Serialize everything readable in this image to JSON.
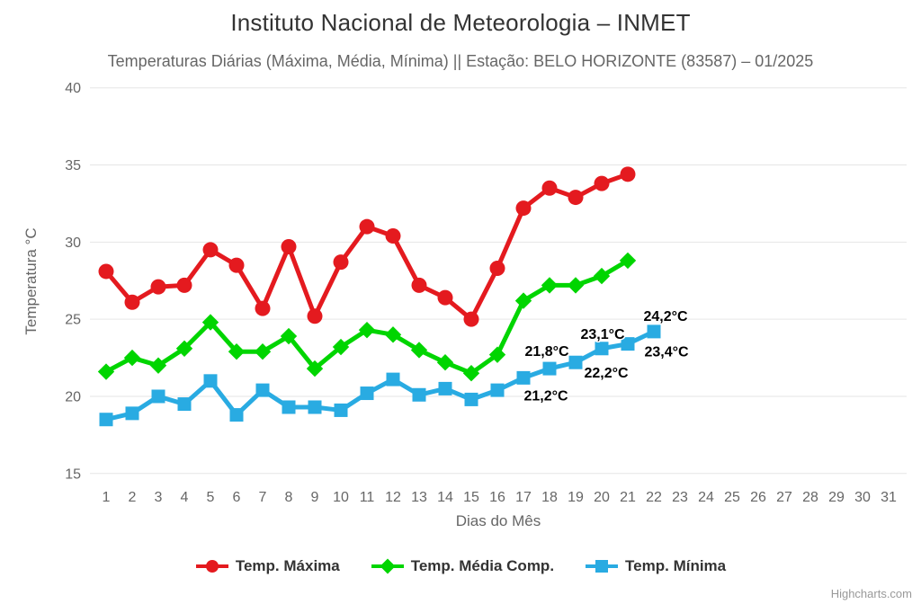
{
  "header": {
    "title": "Instituto Nacional de Meteorologia – INMET",
    "subtitle": "Temperaturas Diárias (Máxima, Média, Mínima) || Estação: BELO HORIZONTE (83587) – 01/2025"
  },
  "credits": "Highcharts.com",
  "chart_data": {
    "type": "line",
    "title": "Instituto Nacional de Meteorologia – INMET",
    "subtitle": "Temperaturas Diárias (Máxima, Média, Mínima) || Estação: BELO HORIZONTE (83587) – 01/2025",
    "xlabel": "Dias do Mês",
    "ylabel": "Temperatura °C",
    "ylim": [
      15,
      40
    ],
    "y_ticks": [
      40,
      35,
      30,
      25,
      20,
      15
    ],
    "x_ticks": [
      "1",
      "2",
      "3",
      "4",
      "5",
      "6",
      "7",
      "8",
      "9",
      "10",
      "11",
      "12",
      "13",
      "14",
      "15",
      "16",
      "17",
      "18",
      "19",
      "20",
      "21",
      "22",
      "23",
      "24",
      "25",
      "26",
      "27",
      "28",
      "29",
      "30",
      "31"
    ],
    "grid": true,
    "grid_color": "#e6e6e6",
    "legend_position": "bottom",
    "series": [
      {
        "name": "Temp. Máxima",
        "color": "#e41a1f",
        "marker": "circle",
        "x": [
          1,
          2,
          3,
          4,
          5,
          6,
          7,
          8,
          9,
          10,
          11,
          12,
          13,
          14,
          15,
          16,
          17,
          18,
          19,
          20,
          21
        ],
        "values": [
          28.1,
          26.1,
          27.1,
          27.2,
          29.5,
          28.5,
          25.7,
          29.7,
          25.2,
          28.7,
          31.0,
          30.4,
          27.2,
          26.4,
          25.0,
          28.3,
          32.2,
          33.5,
          32.9,
          33.8,
          34.4
        ]
      },
      {
        "name": "Temp. Média Comp.",
        "color": "#00d500",
        "marker": "diamond",
        "x": [
          1,
          2,
          3,
          4,
          5,
          6,
          7,
          8,
          9,
          10,
          11,
          12,
          13,
          14,
          15,
          16,
          17,
          18,
          19,
          20,
          21
        ],
        "values": [
          21.6,
          22.5,
          22.0,
          23.1,
          24.8,
          22.9,
          22.9,
          23.9,
          21.8,
          23.2,
          24.3,
          24.0,
          23.0,
          22.2,
          21.5,
          22.7,
          26.2,
          27.2,
          27.2,
          27.8,
          28.8
        ]
      },
      {
        "name": "Temp. Mínima",
        "color": "#29abe2",
        "marker": "square",
        "x": [
          1,
          2,
          3,
          4,
          5,
          6,
          7,
          8,
          9,
          10,
          11,
          12,
          13,
          14,
          15,
          16,
          17,
          18,
          19,
          20,
          21,
          22
        ],
        "values": [
          18.5,
          18.9,
          20.0,
          19.5,
          21.0,
          18.8,
          20.4,
          19.3,
          19.3,
          19.1,
          20.2,
          21.1,
          20.1,
          20.5,
          19.8,
          20.4,
          21.2,
          21.8,
          22.2,
          23.1,
          23.4,
          24.2
        ],
        "data_labels": [
          {
            "day": 17,
            "text": "21,2°C",
            "dx": 25,
            "dy": 25
          },
          {
            "day": 18,
            "text": "21,8°C",
            "dx": -3,
            "dy": -14
          },
          {
            "day": 19,
            "text": "22,2°C",
            "dx": 34,
            "dy": 17
          },
          {
            "day": 20,
            "text": "23,1°C",
            "dx": 1,
            "dy": -11
          },
          {
            "day": 21,
            "text": "23,4°C",
            "dx": 43,
            "dy": 14
          },
          {
            "day": 22,
            "text": "24,2°C",
            "dx": 13,
            "dy": -12
          }
        ]
      }
    ]
  }
}
